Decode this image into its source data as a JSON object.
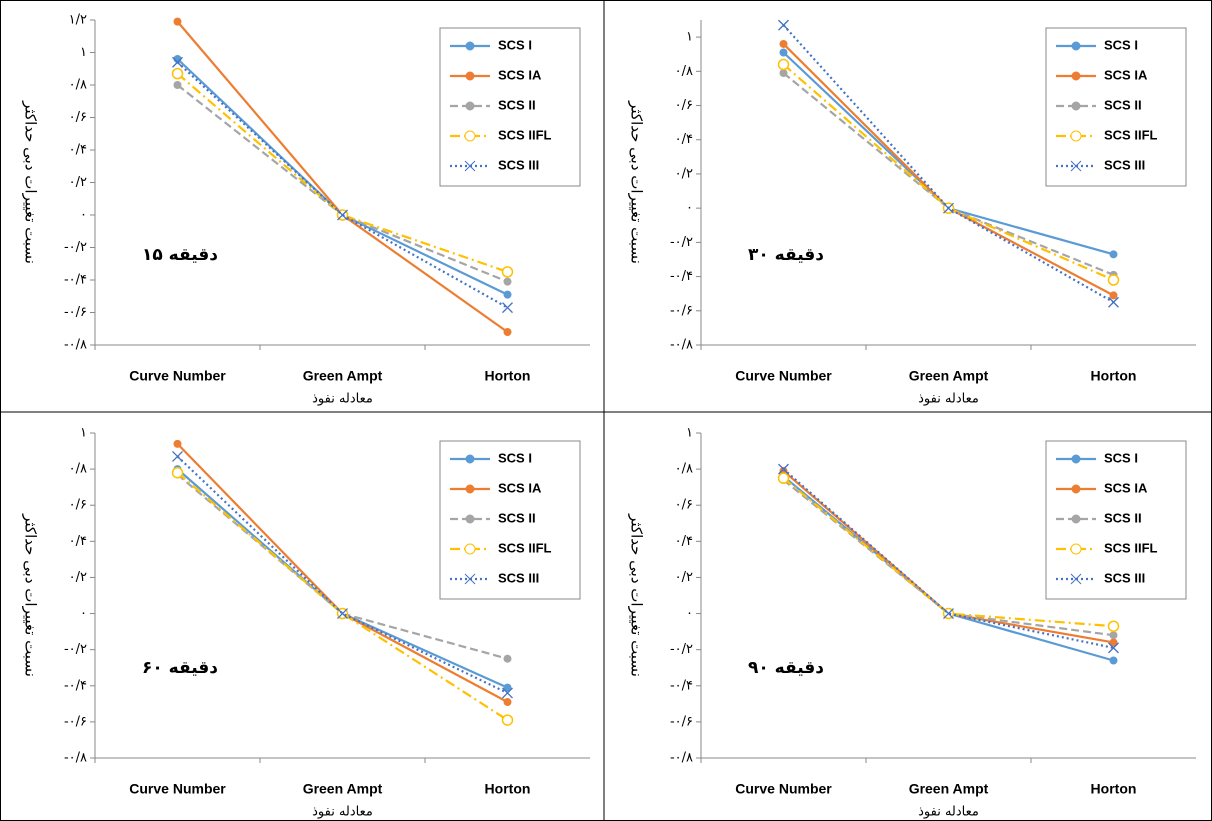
{
  "chart_data": [
    {
      "type": "line",
      "annotation": "۱۵ دقیقه",
      "x_label": "معادله نفوذ",
      "y_label": "نسبت تغییرات دبی حداکثر",
      "categories": [
        "Curve Number",
        "Green Ampt",
        "Horton"
      ],
      "ylim": [
        -0.8,
        1.2
      ],
      "yticks": [
        {
          "value": -0.8,
          "label": "-۰/۸"
        },
        {
          "value": -0.6,
          "label": "-۰/۶"
        },
        {
          "value": -0.4,
          "label": "-۰/۴"
        },
        {
          "value": -0.2,
          "label": "-۰/۲"
        },
        {
          "value": 0,
          "label": "۰"
        },
        {
          "value": 0.2,
          "label": "۰/۲"
        },
        {
          "value": 0.4,
          "label": "۰/۴"
        },
        {
          "value": 0.6,
          "label": "۰/۶"
        },
        {
          "value": 0.8,
          "label": "۰/۸"
        },
        {
          "value": 1,
          "label": "۱"
        },
        {
          "value": 1.2,
          "label": "۱/۲"
        }
      ],
      "series": [
        {
          "name": "SCS I",
          "color": "#5b9bd5",
          "dash": "solid",
          "marker": "circle",
          "values": [
            0.96,
            0,
            -0.49
          ]
        },
        {
          "name": "SCS IA",
          "color": "#ed7d31",
          "dash": "solid",
          "marker": "circle",
          "values": [
            1.19,
            0,
            -0.72
          ]
        },
        {
          "name": "SCS II",
          "color": "#a5a5a5",
          "dash": "dash",
          "marker": "circle",
          "values": [
            0.8,
            0,
            -0.41
          ]
        },
        {
          "name": "SCS IIFL",
          "color": "#ffc000",
          "dash": "dashdot",
          "marker": "open-circle",
          "values": [
            0.87,
            0,
            -0.35
          ]
        },
        {
          "name": "SCS III",
          "color": "#4472c4",
          "dash": "dot",
          "marker": "x",
          "values": [
            0.94,
            0,
            -0.57
          ]
        }
      ]
    },
    {
      "type": "line",
      "annotation": "۳۰ دقیقه",
      "x_label": "معادله نفوذ",
      "y_label": "نسبت تغییرات دبی حداکثر",
      "categories": [
        "Curve Number",
        "Green Ampt",
        "Horton"
      ],
      "ylim": [
        -0.8,
        1.1
      ],
      "yticks": [
        {
          "value": -0.8,
          "label": "-۰/۸"
        },
        {
          "value": -0.6,
          "label": "-۰/۶"
        },
        {
          "value": -0.4,
          "label": "-۰/۴"
        },
        {
          "value": -0.2,
          "label": "-۰/۲"
        },
        {
          "value": 0,
          "label": "۰"
        },
        {
          "value": 0.2,
          "label": "۰/۲"
        },
        {
          "value": 0.4,
          "label": "۰/۴"
        },
        {
          "value": 0.6,
          "label": "۰/۶"
        },
        {
          "value": 0.8,
          "label": "۰/۸"
        },
        {
          "value": 1,
          "label": "۱"
        }
      ],
      "series": [
        {
          "name": "SCS I",
          "color": "#5b9bd5",
          "dash": "solid",
          "marker": "circle",
          "values": [
            0.91,
            0,
            -0.27
          ]
        },
        {
          "name": "SCS IA",
          "color": "#ed7d31",
          "dash": "solid",
          "marker": "circle",
          "values": [
            0.96,
            0,
            -0.51
          ]
        },
        {
          "name": "SCS II",
          "color": "#a5a5a5",
          "dash": "dash",
          "marker": "circle",
          "values": [
            0.79,
            0,
            -0.39
          ]
        },
        {
          "name": "SCS IIFL",
          "color": "#ffc000",
          "dash": "dashdot",
          "marker": "open-circle",
          "values": [
            0.84,
            0,
            -0.42
          ]
        },
        {
          "name": "SCS III",
          "color": "#4472c4",
          "dash": "dot",
          "marker": "x",
          "values": [
            1.07,
            0,
            -0.55
          ]
        }
      ]
    },
    {
      "type": "line",
      "annotation": "۶۰ دقیقه",
      "x_label": "معادله نفوذ",
      "y_label": "نسبت تغییرات دبی حداکثر",
      "categories": [
        "Curve Number",
        "Green Ampt",
        "Horton"
      ],
      "ylim": [
        -0.8,
        1
      ],
      "yticks": [
        {
          "value": -0.8,
          "label": "-۰/۸"
        },
        {
          "value": -0.6,
          "label": "-۰/۶"
        },
        {
          "value": -0.4,
          "label": "-۰/۴"
        },
        {
          "value": -0.2,
          "label": "-۰/۲"
        },
        {
          "value": 0,
          "label": "۰"
        },
        {
          "value": 0.2,
          "label": "۰/۲"
        },
        {
          "value": 0.4,
          "label": "۰/۴"
        },
        {
          "value": 0.6,
          "label": "۰/۶"
        },
        {
          "value": 0.8,
          "label": "۰/۸"
        },
        {
          "value": 1,
          "label": "۱"
        }
      ],
      "series": [
        {
          "name": "SCS I",
          "color": "#5b9bd5",
          "dash": "solid",
          "marker": "circle",
          "values": [
            0.8,
            0,
            -0.41
          ]
        },
        {
          "name": "SCS IA",
          "color": "#ed7d31",
          "dash": "solid",
          "marker": "circle",
          "values": [
            0.94,
            0,
            -0.49
          ]
        },
        {
          "name": "SCS II",
          "color": "#a5a5a5",
          "dash": "dash",
          "marker": "circle",
          "values": [
            0.77,
            0,
            -0.25
          ]
        },
        {
          "name": "SCS IIFL",
          "color": "#ffc000",
          "dash": "dashdot",
          "marker": "open-circle",
          "values": [
            0.78,
            0,
            -0.59
          ]
        },
        {
          "name": "SCS III",
          "color": "#4472c4",
          "dash": "dot",
          "marker": "x",
          "values": [
            0.87,
            0,
            -0.44
          ]
        }
      ]
    },
    {
      "type": "line",
      "annotation": "۹۰ دقیقه",
      "x_label": "معادله نفوذ",
      "y_label": "نسبت تغییرات دبی حداکثر",
      "categories": [
        "Curve Number",
        "Green Ampt",
        "Horton"
      ],
      "ylim": [
        -0.8,
        1
      ],
      "yticks": [
        {
          "value": -0.8,
          "label": "-۰/۸"
        },
        {
          "value": -0.6,
          "label": "-۰/۶"
        },
        {
          "value": -0.4,
          "label": "-۰/۴"
        },
        {
          "value": -0.2,
          "label": "-۰/۲"
        },
        {
          "value": 0,
          "label": "۰"
        },
        {
          "value": 0.2,
          "label": "۰/۲"
        },
        {
          "value": 0.4,
          "label": "۰/۴"
        },
        {
          "value": 0.6,
          "label": "۰/۶"
        },
        {
          "value": 0.8,
          "label": "۰/۸"
        },
        {
          "value": 1,
          "label": "۱"
        }
      ],
      "series": [
        {
          "name": "SCS I",
          "color": "#5b9bd5",
          "dash": "solid",
          "marker": "circle",
          "values": [
            0.76,
            0,
            -0.26
          ]
        },
        {
          "name": "SCS IA",
          "color": "#ed7d31",
          "dash": "solid",
          "marker": "circle",
          "values": [
            0.79,
            0,
            -0.16
          ]
        },
        {
          "name": "SCS II",
          "color": "#a5a5a5",
          "dash": "dash",
          "marker": "circle",
          "values": [
            0.74,
            0,
            -0.12
          ]
        },
        {
          "name": "SCS IIFL",
          "color": "#ffc000",
          "dash": "dashdot",
          "marker": "open-circle",
          "values": [
            0.75,
            0,
            -0.07
          ]
        },
        {
          "name": "SCS III",
          "color": "#4472c4",
          "dash": "dot",
          "marker": "x",
          "values": [
            0.8,
            0,
            -0.19
          ]
        }
      ]
    }
  ]
}
